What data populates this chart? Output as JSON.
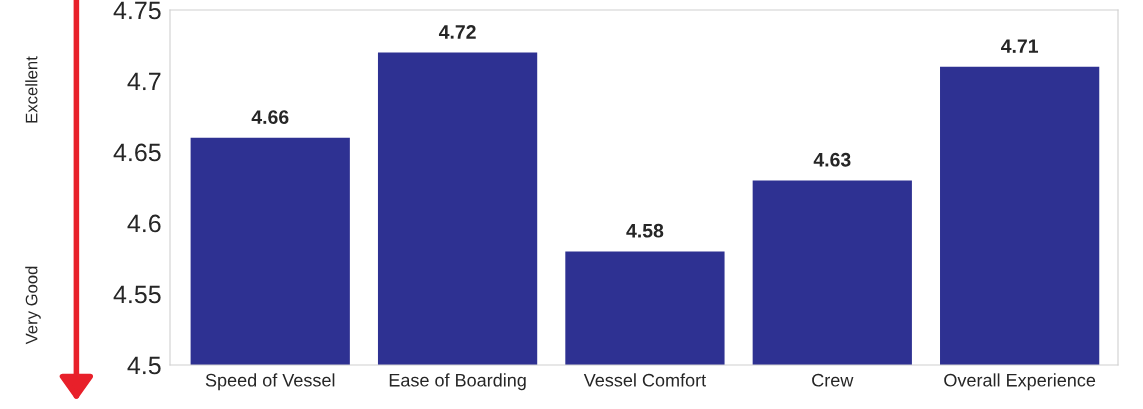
{
  "chart_data": {
    "type": "bar",
    "categories": [
      "Speed of Vessel",
      "Ease of Boarding",
      "Vessel Comfort",
      "Crew",
      "Overall Experience"
    ],
    "values": [
      4.66,
      4.72,
      4.58,
      4.63,
      4.71
    ],
    "color": "#2e3192",
    "ylim": [
      4.5,
      4.75
    ],
    "yticks": [
      {
        "value": 4.5,
        "label": "4.5"
      },
      {
        "value": 4.55,
        "label": "4.55"
      },
      {
        "value": 4.6,
        "label": "4.6"
      },
      {
        "value": 4.65,
        "label": "4.65"
      },
      {
        "value": 4.7,
        "label": "4.7"
      },
      {
        "value": 4.75,
        "label": "4.75"
      }
    ],
    "data_labels": true,
    "grid": false,
    "legend": false,
    "annotations": [
      "Excellent",
      "Very Good"
    ]
  }
}
